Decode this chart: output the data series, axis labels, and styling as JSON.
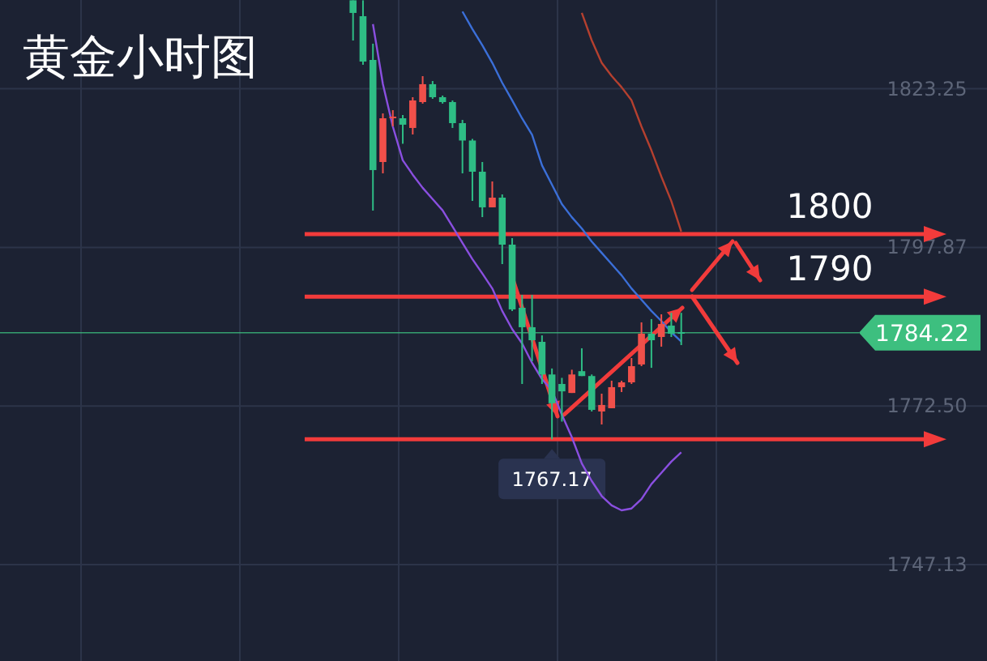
{
  "chart_data": {
    "type": "candlestick",
    "title": "黄金小时图",
    "categories": [
      null,
      null,
      null,
      null,
      null,
      null,
      null,
      null,
      null,
      null,
      null,
      null,
      null,
      null,
      null,
      null,
      null,
      null,
      null,
      null,
      null,
      null,
      null,
      null,
      null,
      null,
      null,
      null,
      null,
      null,
      null,
      null,
      null,
      null,
      null,
      null,
      null,
      null,
      null,
      null,
      null,
      null,
      null,
      null,
      null,
      null,
      null,
      null,
      null,
      null,
      null,
      null,
      null,
      null,
      null,
      null,
      null,
      null,
      null,
      null,
      null,
      null,
      null,
      null,
      null,
      null,
      null,
      null,
      null,
      null,
      null,
      null,
      null,
      null,
      null,
      null,
      null,
      null,
      null,
      null,
      null,
      null,
      null,
      null,
      null,
      null,
      null,
      null
    ],
    "ohlc": [
      null,
      null,
      null,
      null,
      null,
      null,
      null,
      null,
      null,
      null,
      null,
      null,
      null,
      null,
      null,
      null,
      null,
      null,
      null,
      null,
      null,
      null,
      null,
      null,
      null,
      null,
      null,
      null,
      null,
      null,
      null,
      null,
      null,
      null,
      null,
      [
        1837.4,
        1837.4,
        1830.97,
        1835.38
      ],
      [
        1834.86,
        1837.4,
        1827.09,
        1827.6
      ],
      [
        1827.86,
        1830.46,
        1803.76,
        1810.24
      ],
      [
        1811.53,
        1819.31,
        1809.72,
        1818.53
      ],
      [
        1818.79,
        1819.83,
        1817.24,
        1818.79
      ],
      [
        1818.53,
        1819.05,
        1814.45,
        1817.5
      ],
      [
        1816.98,
        1821.9,
        1815.94,
        1821.38
      ],
      [
        1821.12,
        1825.27,
        1820.87,
        1823.98
      ],
      [
        1823.98,
        1824.49,
        1821.64,
        1821.9
      ],
      [
        1821.9,
        1822.16,
        1820.87,
        1821.12
      ],
      [
        1821.12,
        1821.38,
        1816.98,
        1817.75
      ],
      [
        1817.75,
        1818.27,
        1809.72,
        1814.97
      ],
      [
        1814.97,
        1815.23,
        1805.31,
        1809.98
      ],
      [
        1809.98,
        1811.53,
        1802.72,
        1804.28
      ],
      [
        1804.28,
        1808.42,
        1804.28,
        1805.83
      ],
      [
        1805.83,
        1806.35,
        1795.2,
        1798.31
      ],
      [
        1798.31,
        1799.35,
        1787.69,
        1787.95
      ],
      [
        1788.21,
        1790.28,
        1776.02,
        1785.1
      ],
      [
        1785.1,
        1790.28,
        1779.65,
        1783.02
      ],
      [
        1782.76,
        1783.8,
        1776.02,
        1777.54
      ],
      [
        1777.54,
        1778.5,
        1767.17,
        1772.93
      ],
      [
        1776.02,
        1777.0,
        1770.0,
        1774.84
      ],
      [
        1774.58,
        1778.3,
        1774.58,
        1777.54
      ],
      [
        1778.07,
        1781.73,
        1777.29,
        1777.29
      ],
      [
        1777.29,
        1777.54,
        1771.62,
        1771.88
      ],
      [
        1771.62,
        1774.47,
        1769.54,
        1772.66
      ],
      [
        1772.14,
        1776.54,
        1772.14,
        1775.51
      ],
      [
        1775.51,
        1776.54,
        1774.73,
        1776.28
      ],
      [
        1776.28,
        1780.17,
        1776.02,
        1778.87
      ],
      [
        1779.14,
        1785.88,
        1778.87,
        1784.06
      ],
      [
        1784.06,
        1786.4,
        1778.6,
        1783.02
      ],
      [
        1783.54,
        1787.17,
        1781.99,
        1785.62
      ],
      [
        1785.36,
        1787.4,
        1783.54,
        1784.06
      ],
      [
        1784.32,
        1787.4,
        1782.24,
        1784.22
      ],
      null,
      null,
      null,
      null,
      null,
      null,
      null,
      null,
      null,
      null,
      null,
      null,
      null,
      null,
      null,
      null,
      null,
      null,
      null
    ],
    "colors": [
      null,
      null,
      null,
      null,
      null,
      null,
      null,
      null,
      null,
      null,
      null,
      null,
      null,
      null,
      null,
      null,
      null,
      null,
      null,
      null,
      null,
      null,
      null,
      null,
      null,
      null,
      null,
      null,
      null,
      null,
      null,
      null,
      null,
      null,
      null,
      "#2ebd85",
      "#2ebd85",
      "#2ebd85",
      "#f0504a",
      "#f0504a",
      "#2ebd85",
      "#f0504a",
      "#f0504a",
      "#2ebd85",
      "#2ebd85",
      "#2ebd85",
      "#2ebd85",
      "#2ebd85",
      "#2ebd85",
      "#f0504a",
      "#2ebd85",
      "#2ebd85",
      "#2ebd85",
      "#2ebd85",
      "#2ebd85",
      "#2ebd85",
      "#2ebd85",
      "#f0504a",
      "#2ebd85",
      "#2ebd85",
      "#f0504a",
      "#f0504a",
      "#f0504a",
      "#f0504a",
      "#f0504a",
      "#2ebd85",
      "#f0504a",
      "#2ebd85",
      "#2ebd85",
      null,
      null,
      null,
      null,
      null,
      null,
      null,
      null,
      null,
      null,
      null,
      null,
      null,
      null,
      null,
      null,
      null,
      null,
      null
    ],
    "series": [
      {
        "type": "line",
        "color": "#b5402f",
        "values": [
          null,
          null,
          null,
          null,
          null,
          null,
          null,
          null,
          null,
          null,
          null,
          null,
          null,
          null,
          null,
          null,
          null,
          null,
          null,
          null,
          null,
          null,
          null,
          null,
          null,
          null,
          null,
          null,
          null,
          null,
          null,
          null,
          null,
          null,
          null,
          null,
          null,
          null,
          null,
          null,
          null,
          null,
          null,
          null,
          null,
          null,
          null,
          null,
          null,
          null,
          null,
          null,
          null,
          null,
          null,
          null,
          null,
          null,
          1835.4,
          1831.0,
          1827.4,
          1825.3,
          1823.5,
          1821.4,
          1817.2,
          1813.4,
          1809.2,
          1805.3,
          1800.4,
          null,
          null,
          null,
          null,
          null,
          null,
          null,
          null,
          null,
          null,
          null,
          null,
          null,
          null,
          null,
          null,
          null,
          null,
          null
        ]
      },
      {
        "type": "line",
        "color": "#3b6fd8",
        "values": [
          null,
          null,
          null,
          null,
          null,
          null,
          null,
          null,
          null,
          null,
          null,
          null,
          null,
          null,
          null,
          null,
          null,
          null,
          null,
          null,
          null,
          null,
          null,
          null,
          null,
          null,
          null,
          null,
          null,
          null,
          null,
          null,
          null,
          null,
          null,
          null,
          null,
          null,
          null,
          null,
          null,
          null,
          null,
          null,
          null,
          null,
          1835.6,
          1832.8,
          1830.2,
          1827.4,
          1824.2,
          1821.4,
          1818.5,
          1815.9,
          1811.0,
          1807.9,
          1804.8,
          1802.7,
          1800.9,
          1798.8,
          1797.0,
          1795.2,
          1793.4,
          1791.3,
          1789.5,
          1787.7,
          1786.1,
          1784.3,
          1782.8,
          null,
          null,
          null,
          null,
          null,
          null,
          null,
          null,
          null,
          null,
          null,
          null,
          null,
          null,
          null,
          null,
          null,
          null,
          null
        ]
      },
      {
        "type": "line",
        "color": "#8a4fe0",
        "values": [
          null,
          null,
          null,
          null,
          null,
          null,
          null,
          null,
          null,
          null,
          null,
          null,
          null,
          null,
          null,
          null,
          null,
          null,
          null,
          null,
          null,
          null,
          null,
          null,
          null,
          null,
          null,
          null,
          null,
          null,
          null,
          null,
          null,
          null,
          null,
          null,
          null,
          1833.6,
          1824.0,
          1817.2,
          1811.8,
          1809.5,
          1807.4,
          1805.6,
          1803.8,
          1801.2,
          1798.6,
          1796.0,
          1793.7,
          1791.3,
          1787.7,
          1784.8,
          1782.5,
          1779.4,
          1776.8,
          1775.0,
          1771.1,
          1767.5,
          1763.3,
          1760.5,
          1758.1,
          1756.6,
          1755.8,
          1756.1,
          1757.6,
          1760.0,
          1761.8,
          1763.6,
          1765.1,
          null,
          null,
          null,
          null,
          null,
          null,
          null,
          null,
          null,
          null,
          null,
          null,
          null,
          null,
          null,
          null,
          null,
          null,
          null
        ]
      }
    ],
    "ylim": [
      1731.7,
      1837.45
    ],
    "yticks": [
      1747.13,
      {
        "value": 1772.5,
        "label": "1772.50"
      },
      1797.87,
      1823.25
    ],
    "tick_labels": "y",
    "grid": true,
    "ref_lines": [
      {
        "axis": "y",
        "value": 1784.22,
        "label": "1784.22",
        "color": "#3dbf7f"
      },
      {
        "axis": "y",
        "value": 1800,
        "label": "1800",
        "color": "#f23b3b"
      },
      {
        "axis": "y",
        "value": 1790,
        "label": "1790",
        "color": "#f23b3b"
      },
      {
        "axis": "y",
        "value": 1767.17,
        "label": null,
        "color": "#f23b3b"
      }
    ],
    "annotations": [
      {
        "text": "1767.17",
        "y": 1767.17
      }
    ]
  }
}
